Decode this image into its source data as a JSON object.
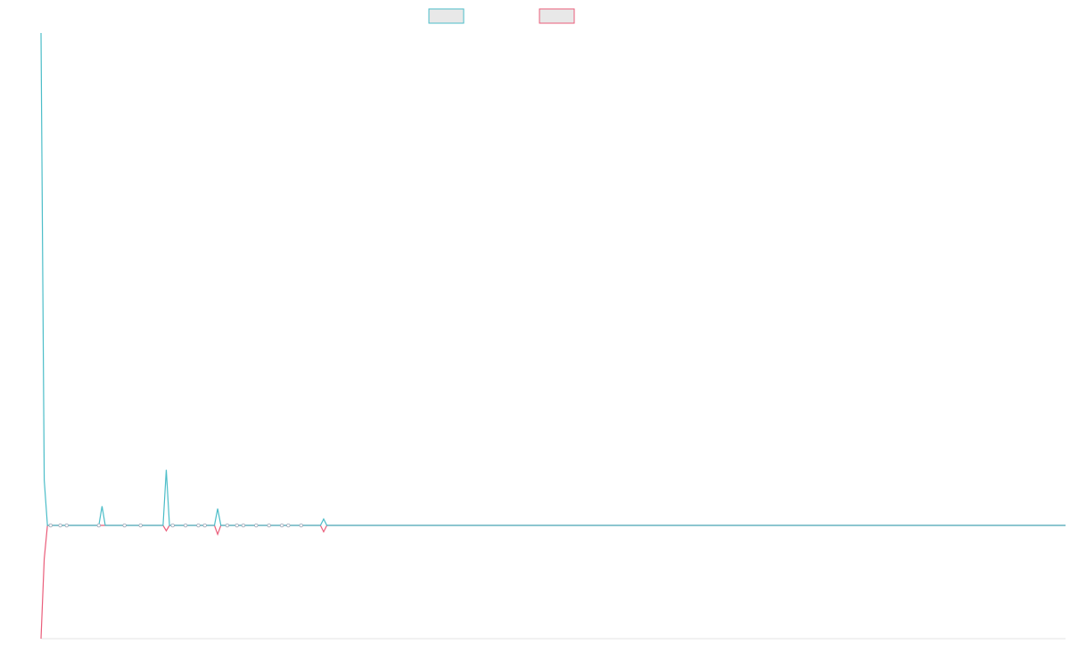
{
  "chart_data": {
    "type": "line",
    "series": [
      {
        "color": "#4bbdc8",
        "values": [
          {
            "x": 0,
            "y": 1000
          },
          {
            "x": 1,
            "y": 92
          },
          {
            "x": 2,
            "y": 0
          },
          {
            "x": 5,
            "y": 0
          },
          {
            "x": 7,
            "y": 0
          },
          {
            "x": 9,
            "y": 0
          },
          {
            "x": 18,
            "y": 0
          },
          {
            "x": 19,
            "y": 39
          },
          {
            "x": 20,
            "y": 0
          },
          {
            "x": 24,
            "y": 0
          },
          {
            "x": 27,
            "y": 0
          },
          {
            "x": 31,
            "y": 0
          },
          {
            "x": 38,
            "y": 0
          },
          {
            "x": 39,
            "y": 113
          },
          {
            "x": 40,
            "y": 0
          },
          {
            "x": 41,
            "y": 0
          },
          {
            "x": 44,
            "y": 0
          },
          {
            "x": 48,
            "y": 0
          },
          {
            "x": 50,
            "y": 0
          },
          {
            "x": 54,
            "y": 0
          },
          {
            "x": 55,
            "y": 34
          },
          {
            "x": 56,
            "y": 0
          },
          {
            "x": 58,
            "y": 0
          },
          {
            "x": 61,
            "y": 0
          },
          {
            "x": 63,
            "y": 0
          },
          {
            "x": 67,
            "y": 0
          },
          {
            "x": 71,
            "y": 0
          },
          {
            "x": 75,
            "y": 0
          },
          {
            "x": 78,
            "y": 0
          },
          {
            "x": 87,
            "y": 0
          },
          {
            "x": 88,
            "y": 13
          },
          {
            "x": 89,
            "y": 0
          },
          {
            "x": 319,
            "y": 0
          }
        ]
      },
      {
        "color": "#ea5d7a",
        "values": [
          {
            "x": 0,
            "y": -230
          },
          {
            "x": 1,
            "y": -68
          },
          {
            "x": 2,
            "y": 0
          },
          {
            "x": 5,
            "y": 0
          },
          {
            "x": 7,
            "y": 0
          },
          {
            "x": 9,
            "y": 0
          },
          {
            "x": 18,
            "y": 0
          },
          {
            "x": 24,
            "y": 0
          },
          {
            "x": 27,
            "y": 0
          },
          {
            "x": 31,
            "y": 0
          },
          {
            "x": 38,
            "y": 0
          },
          {
            "x": 39,
            "y": -11
          },
          {
            "x": 40,
            "y": 0
          },
          {
            "x": 41,
            "y": 0
          },
          {
            "x": 44,
            "y": 0
          },
          {
            "x": 48,
            "y": 0
          },
          {
            "x": 50,
            "y": 0
          },
          {
            "x": 54,
            "y": 0
          },
          {
            "x": 55,
            "y": -18
          },
          {
            "x": 56,
            "y": 0
          },
          {
            "x": 58,
            "y": 0
          },
          {
            "x": 61,
            "y": 0
          },
          {
            "x": 63,
            "y": 0
          },
          {
            "x": 67,
            "y": 0
          },
          {
            "x": 71,
            "y": 0
          },
          {
            "x": 75,
            "y": 0
          },
          {
            "x": 78,
            "y": 0
          },
          {
            "x": 87,
            "y": 0
          },
          {
            "x": 88,
            "y": -13
          },
          {
            "x": 89,
            "y": 0
          },
          {
            "x": 319,
            "y": 0
          }
        ]
      }
    ],
    "markers": {
      "x": [
        3,
        6,
        8,
        18,
        26,
        31,
        41,
        45,
        49,
        51,
        58,
        61,
        63,
        67,
        71,
        75,
        77,
        81
      ]
    },
    "xlim": [
      0,
      319
    ],
    "ylim": [
      -230,
      1000
    ],
    "title": "",
    "xlabel": "",
    "ylabel": "",
    "grid": false,
    "legend_position": "top-center"
  }
}
